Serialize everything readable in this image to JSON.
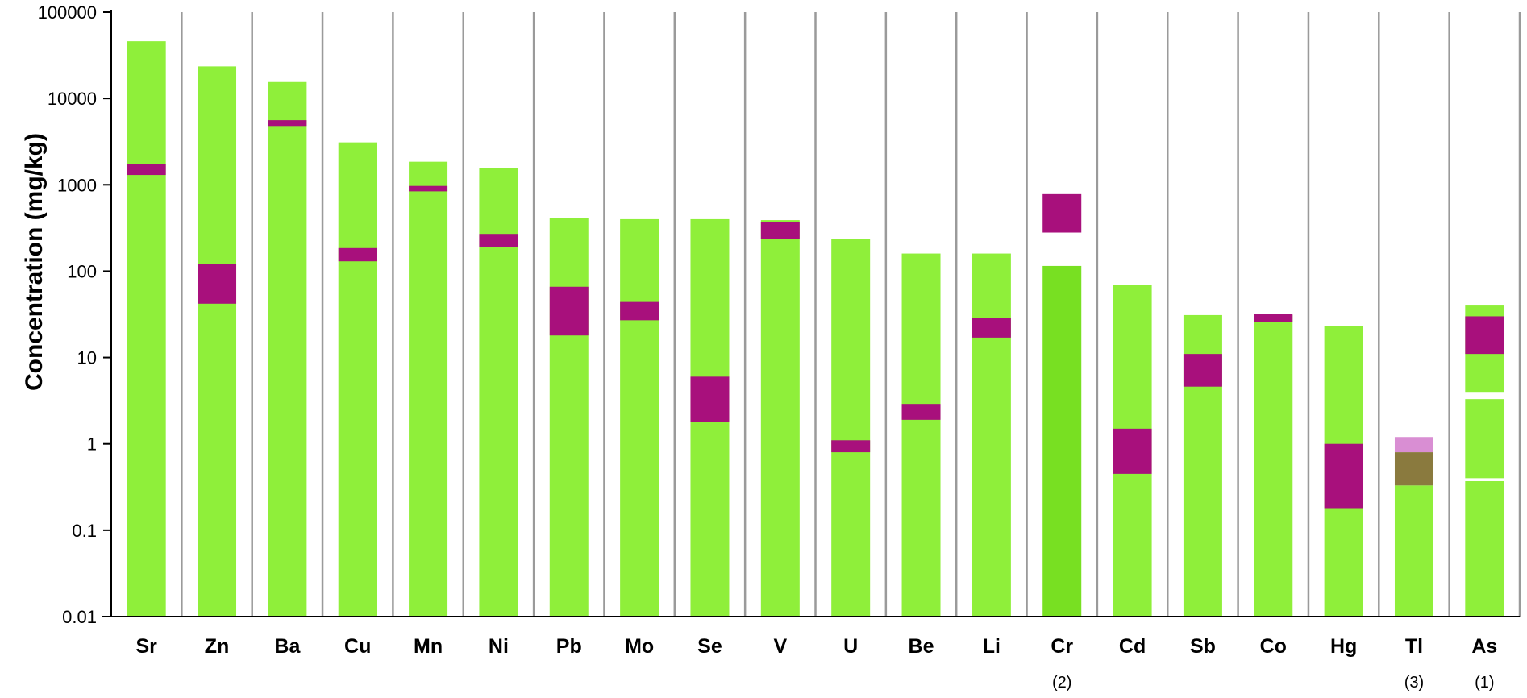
{
  "chart_data": {
    "type": "bar",
    "y_scale": "log",
    "ylim": [
      0.01,
      100000
    ],
    "ylabel": "Concentration (mg/kg)",
    "xlabel": "",
    "title": "",
    "grid": "vertical lines between categories",
    "y_ticks": [
      "0.01",
      "0.1",
      "1",
      "10",
      "100",
      "1000",
      "10000",
      "100000"
    ],
    "colors": {
      "range": "#8fef3a",
      "range_dark": "#78e022",
      "band": "#a8107c",
      "band_light": "#d98ed3",
      "band_overlap": "#8a7a3e",
      "grid": "#9a9a9a",
      "axis": "#000000"
    },
    "categories": [
      {
        "label": "Sr",
        "note": "",
        "segments": [
          {
            "low": 0.01,
            "high": 46000,
            "kind": "range"
          },
          {
            "low": 1300,
            "high": 1750,
            "kind": "band"
          }
        ]
      },
      {
        "label": "Zn",
        "note": "",
        "segments": [
          {
            "low": 0.01,
            "high": 23500,
            "kind": "range"
          },
          {
            "low": 42,
            "high": 120,
            "kind": "band"
          }
        ]
      },
      {
        "label": "Ba",
        "note": "",
        "segments": [
          {
            "low": 0.01,
            "high": 15500,
            "kind": "range"
          },
          {
            "low": 4800,
            "high": 5600,
            "kind": "band"
          }
        ]
      },
      {
        "label": "Cu",
        "note": "",
        "segments": [
          {
            "low": 0.01,
            "high": 3100,
            "kind": "range"
          },
          {
            "low": 130,
            "high": 185,
            "kind": "band"
          }
        ]
      },
      {
        "label": "Mn",
        "note": "",
        "segments": [
          {
            "low": 0.01,
            "high": 1850,
            "kind": "range"
          },
          {
            "low": 840,
            "high": 970,
            "kind": "band"
          }
        ]
      },
      {
        "label": "Ni",
        "note": "",
        "segments": [
          {
            "low": 0.01,
            "high": 1550,
            "kind": "range"
          },
          {
            "low": 190,
            "high": 270,
            "kind": "band"
          }
        ]
      },
      {
        "label": "Pb",
        "note": "",
        "segments": [
          {
            "low": 0.01,
            "high": 410,
            "kind": "range"
          },
          {
            "low": 18,
            "high": 66,
            "kind": "band"
          }
        ]
      },
      {
        "label": "Mo",
        "note": "",
        "segments": [
          {
            "low": 0.01,
            "high": 400,
            "kind": "range"
          },
          {
            "low": 27,
            "high": 44,
            "kind": "band"
          }
        ]
      },
      {
        "label": "Se",
        "note": "",
        "segments": [
          {
            "low": 0.01,
            "high": 400,
            "kind": "range"
          },
          {
            "low": 1.8,
            "high": 6.0,
            "kind": "band"
          }
        ]
      },
      {
        "label": "V",
        "note": "",
        "segments": [
          {
            "low": 0.01,
            "high": 390,
            "kind": "range"
          },
          {
            "low": 235,
            "high": 370,
            "kind": "band"
          }
        ]
      },
      {
        "label": "U",
        "note": "",
        "segments": [
          {
            "low": 0.01,
            "high": 235,
            "kind": "range"
          },
          {
            "low": 0.8,
            "high": 1.1,
            "kind": "band"
          }
        ]
      },
      {
        "label": "Be",
        "note": "",
        "segments": [
          {
            "low": 0.01,
            "high": 160,
            "kind": "range"
          },
          {
            "low": 1.9,
            "high": 2.9,
            "kind": "band"
          }
        ]
      },
      {
        "label": "Li",
        "note": "",
        "segments": [
          {
            "low": 0.01,
            "high": 160,
            "kind": "range"
          },
          {
            "low": 17,
            "high": 29,
            "kind": "band"
          }
        ]
      },
      {
        "label": "Cr",
        "note": "(2)",
        "segments": [
          {
            "low": 0.01,
            "high": 115,
            "kind": "range_dark"
          },
          {
            "low": 280,
            "high": 780,
            "kind": "band"
          }
        ]
      },
      {
        "label": "Cd",
        "note": "",
        "segments": [
          {
            "low": 0.01,
            "high": 70,
            "kind": "range"
          },
          {
            "low": 0.45,
            "high": 1.5,
            "kind": "band"
          }
        ]
      },
      {
        "label": "Sb",
        "note": "",
        "segments": [
          {
            "low": 0.01,
            "high": 31,
            "kind": "range"
          },
          {
            "low": 4.6,
            "high": 11,
            "kind": "band"
          }
        ]
      },
      {
        "label": "Co",
        "note": "",
        "segments": [
          {
            "low": 0.01,
            "high": 31,
            "kind": "range"
          },
          {
            "low": 26,
            "high": 32,
            "kind": "band"
          }
        ]
      },
      {
        "label": "Hg",
        "note": "",
        "segments": [
          {
            "low": 0.01,
            "high": 23,
            "kind": "range"
          },
          {
            "low": 0.18,
            "high": 1.0,
            "kind": "band"
          }
        ]
      },
      {
        "label": "Tl",
        "note": "(3)",
        "segments": [
          {
            "low": 0.01,
            "high": 0.33,
            "kind": "range"
          },
          {
            "low": 0.8,
            "high": 1.2,
            "kind": "band_light"
          },
          {
            "low": 0.33,
            "high": 0.8,
            "kind": "band_overlap"
          }
        ]
      },
      {
        "label": "As",
        "note": "(1)",
        "segments": [
          {
            "low": 0.01,
            "high": 0.37,
            "kind": "range"
          },
          {
            "low": 0.4,
            "high": 3.3,
            "kind": "range"
          },
          {
            "low": 4.0,
            "high": 40,
            "kind": "range"
          },
          {
            "low": 11,
            "high": 30,
            "kind": "band"
          }
        ]
      }
    ]
  }
}
